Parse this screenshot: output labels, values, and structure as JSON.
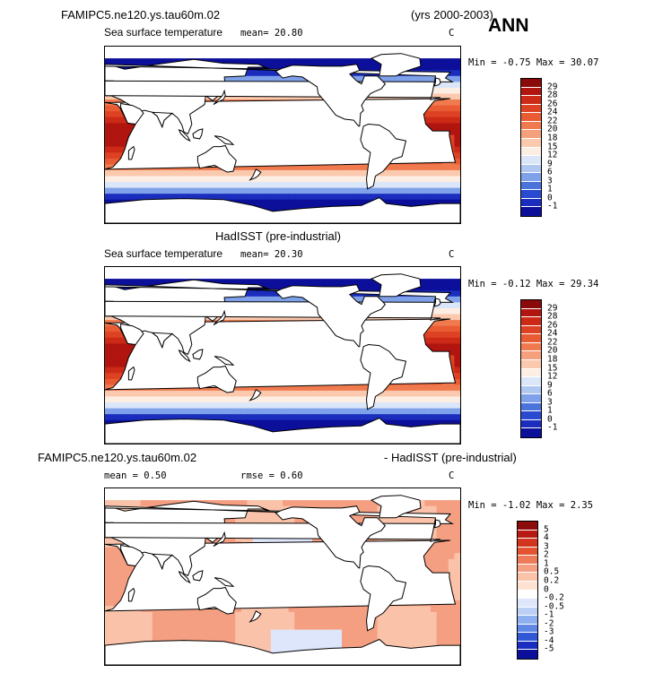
{
  "header": {
    "case_name": "FAMIPC5.ne120.ys.tau60m.02",
    "years": "(yrs 2000-2003)",
    "season": "ANN"
  },
  "panels": [
    {
      "variable": "Sea surface temperature",
      "mean_text": "mean=  20.80",
      "units": "C",
      "minmax_text": "Min =  -0.75 Max =  30.07",
      "colorbar_labels": [
        "29",
        "28",
        "26",
        "24",
        "22",
        "20",
        "18",
        "15",
        "12",
        "9",
        "6",
        "3",
        "1",
        "0",
        "-1"
      ],
      "colors": [
        "#8a0a0a",
        "#b1150f",
        "#cc2a17",
        "#dc4223",
        "#e95b33",
        "#f07a4e",
        "#f5a07c",
        "#fbc9ae",
        "#fdeee4",
        "#dbe6f9",
        "#b0c7f1",
        "#7fa1e9",
        "#4a73dc",
        "#2a4bd0",
        "#1a2dbd",
        "#0c0f9a"
      ]
    },
    {
      "title": "HadISST (pre-industrial)",
      "variable": "Sea surface temperature",
      "mean_text": "mean=  20.30",
      "units": "C",
      "minmax_text": "Min =  -0.12 Max =  29.34",
      "colorbar_labels": [
        "29",
        "28",
        "26",
        "24",
        "22",
        "20",
        "18",
        "15",
        "12",
        "9",
        "6",
        "3",
        "1",
        "0",
        "-1"
      ],
      "colors": [
        "#8a0a0a",
        "#b1150f",
        "#cc2a17",
        "#dc4223",
        "#e95b33",
        "#f07a4e",
        "#f5a07c",
        "#fbc9ae",
        "#fdeee4",
        "#dbe6f9",
        "#b0c7f1",
        "#7fa1e9",
        "#4a73dc",
        "#2a4bd0",
        "#1a2dbd",
        "#0c0f9a"
      ]
    },
    {
      "title_left": "FAMIPC5.ne120.ys.tau60m.02",
      "title_right": "- HadISST (pre-industrial)",
      "mean_text": "mean =   0.50",
      "rmse_text": "rmse =   0.60",
      "units": "C",
      "minmax_text": "Min =  -1.02 Max =   2.35",
      "colorbar_labels": [
        "5",
        "4",
        "3",
        "2",
        "1",
        "0.5",
        "0.2",
        "0",
        "-0.2",
        "-0.5",
        "-1",
        "-2",
        "-3",
        "-4",
        "-5"
      ],
      "colors": [
        "#8c0b0b",
        "#b71a12",
        "#d1351d",
        "#e35431",
        "#ee7b57",
        "#f59f82",
        "#fac2a8",
        "#fde1d1",
        "#ffffff",
        "#dde6fb",
        "#bcd0f5",
        "#8fb0ee",
        "#5f87e3",
        "#3159d6",
        "#1a2fbf",
        "#0c0f9a"
      ]
    }
  ]
}
